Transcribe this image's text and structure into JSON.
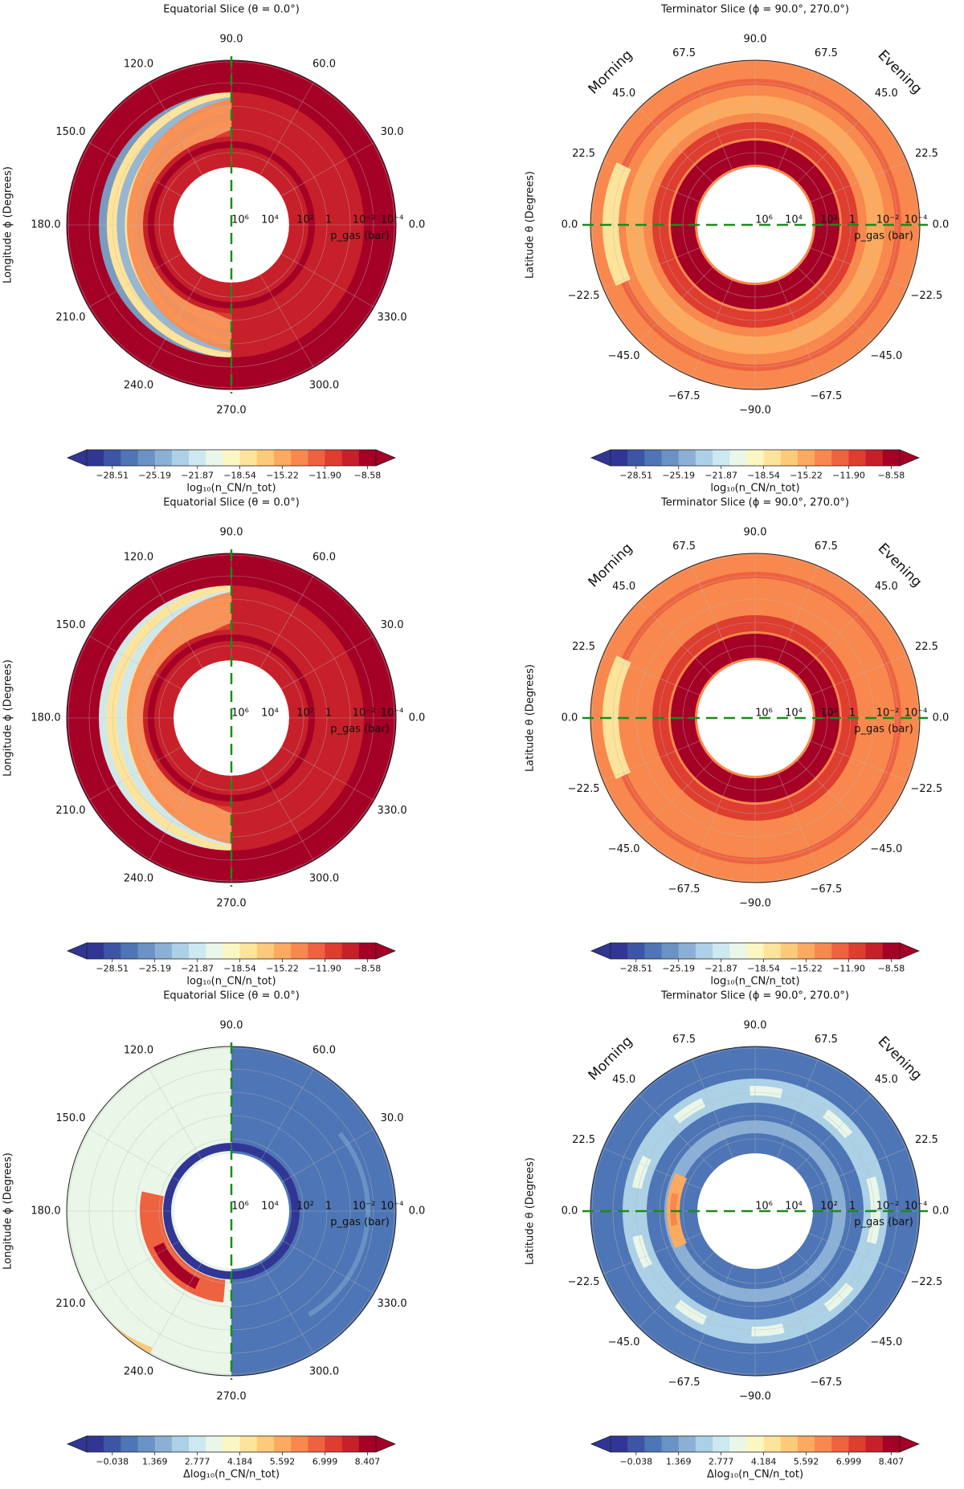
{
  "chart_data": [
    {
      "type": "polar-contour",
      "title": "Equatorial Slice (θ = 0.0°)",
      "angle_label": "Longitude ϕ (Degrees)",
      "angle_ticks": [
        "0.0",
        "30.0",
        "60.0",
        "90.0",
        "120.0",
        "150.0",
        "180.0",
        "210.0",
        "240.0",
        "270.0",
        "300.0",
        "330.0"
      ],
      "radial_ticks": [
        "10⁶",
        "10⁴",
        "10²",
        "1",
        "10⁻²",
        "10⁻⁴"
      ],
      "radial_label": "p_gas (bar)",
      "colorbar": {
        "colors": [
          "#313695",
          "#3d55a5",
          "#4e75b5",
          "#6b92c4",
          "#8cb0d5",
          "#acd0e5",
          "#cce8f1",
          "#e9f6e8",
          "#fbf7c3",
          "#fee39a",
          "#fdca79",
          "#fcaa5f",
          "#f8884d",
          "#ee6240",
          "#de3d2f",
          "#c7202a",
          "#a50026"
        ],
        "tick_labels": [
          "−28.51",
          "−25.19",
          "−21.87",
          "−18.54",
          "−15.22",
          "−11.90",
          "−8.58"
        ],
        "label": "log₁₀(n_CN/n_tot)"
      },
      "dayside_value_range": [
        -12.6,
        -9.2
      ],
      "nightside_value_range": [
        -29,
        -17
      ]
    },
    {
      "type": "polar-contour",
      "title": "Terminator Slice (ϕ = 90.0°, 270.0°)",
      "angle_label": "Latitude θ (Degrees)",
      "angle_ticks": [
        "0.0",
        "22.5",
        "45.0",
        "67.5",
        "90.0",
        "67.5",
        "45.0",
        "22.5",
        "0.0",
        "−22.5",
        "−45.0",
        "−67.5",
        "−90.0",
        "−67.5",
        "−45.0",
        "−22.5"
      ],
      "radial_ticks": [
        "10⁶",
        "10⁴",
        "10²",
        "1",
        "10⁻²",
        "10⁻⁴"
      ],
      "radial_label": "p_gas (bar)",
      "side_labels": [
        "Morning",
        "Evening"
      ],
      "colorbar": {
        "colors": [
          "#313695",
          "#3d55a5",
          "#4e75b5",
          "#6b92c4",
          "#8cb0d5",
          "#acd0e5",
          "#cce8f1",
          "#e9f6e8",
          "#fbf7c3",
          "#fee39a",
          "#fdca79",
          "#fcaa5f",
          "#f8884d",
          "#ee6240",
          "#de3d2f",
          "#c7202a",
          "#a50026"
        ],
        "tick_labels": [
          "−28.51",
          "−25.19",
          "−21.87",
          "−18.54",
          "−15.22",
          "−11.90",
          "−8.58"
        ],
        "label": "log₁₀(n_CN/n_tot)"
      }
    },
    {
      "type": "polar-contour",
      "title": "Equatorial Slice (θ = 0.0°)",
      "angle_label": "Longitude ϕ (Degrees)",
      "angle_ticks": [
        "0.0",
        "30.0",
        "60.0",
        "90.0",
        "120.0",
        "150.0",
        "180.0",
        "210.0",
        "240.0",
        "270.0",
        "300.0",
        "330.0"
      ],
      "radial_ticks": [
        "10⁶",
        "10⁴",
        "10²",
        "1",
        "10⁻²",
        "10⁻⁴"
      ],
      "radial_label": "p_gas (bar)",
      "colorbar": {
        "colors": [
          "#313695",
          "#3d55a5",
          "#4e75b5",
          "#6b92c4",
          "#8cb0d5",
          "#acd0e5",
          "#cce8f1",
          "#e9f6e8",
          "#fbf7c3",
          "#fee39a",
          "#fdca79",
          "#fcaa5f",
          "#f8884d",
          "#ee6240",
          "#de3d2f",
          "#c7202a",
          "#a50026"
        ],
        "tick_labels": [
          "−28.51",
          "−25.19",
          "−21.87",
          "−18.54",
          "−15.22",
          "−11.90",
          "−8.58"
        ],
        "label": "log₁₀(n_CN/n_tot)"
      }
    },
    {
      "type": "polar-contour",
      "title": "Terminator Slice (ϕ = 90.0°, 270.0°)",
      "angle_label": "Latitude θ (Degrees)",
      "angle_ticks": [
        "0.0",
        "22.5",
        "45.0",
        "67.5",
        "90.0",
        "67.5",
        "45.0",
        "22.5",
        "0.0",
        "−22.5",
        "−45.0",
        "−67.5",
        "−90.0",
        "−67.5",
        "−45.0",
        "−22.5"
      ],
      "radial_ticks": [
        "10⁶",
        "10⁴",
        "10²",
        "1",
        "10⁻²",
        "10⁻⁴"
      ],
      "radial_label": "p_gas (bar)",
      "side_labels": [
        "Morning",
        "Evening"
      ],
      "colorbar": {
        "colors": [
          "#313695",
          "#3d55a5",
          "#4e75b5",
          "#6b92c4",
          "#8cb0d5",
          "#acd0e5",
          "#cce8f1",
          "#e9f6e8",
          "#fbf7c3",
          "#fee39a",
          "#fdca79",
          "#fcaa5f",
          "#f8884d",
          "#ee6240",
          "#de3d2f",
          "#c7202a",
          "#a50026"
        ],
        "tick_labels": [
          "−28.51",
          "−25.19",
          "−21.87",
          "−18.54",
          "−15.22",
          "−11.90",
          "−8.58"
        ],
        "label": "log₁₀(n_CN/n_tot)"
      }
    },
    {
      "type": "polar-contour",
      "title": "Equatorial Slice (θ = 0.0°)",
      "angle_label": "Longitude ϕ (Degrees)",
      "angle_ticks": [
        "0.0",
        "30.0",
        "60.0",
        "90.0",
        "120.0",
        "150.0",
        "180.0",
        "210.0",
        "240.0",
        "270.0",
        "300.0",
        "330.0"
      ],
      "radial_ticks": [
        "10⁶",
        "10⁴",
        "10²",
        "1",
        "10⁻²",
        "10⁻⁴"
      ],
      "radial_label": "p_gas (bar)",
      "colorbar": {
        "colors": [
          "#313695",
          "#3d55a5",
          "#4e75b5",
          "#6b92c4",
          "#8cb0d5",
          "#acd0e5",
          "#cce8f1",
          "#e9f6e8",
          "#fbf7c3",
          "#fee39a",
          "#fdca79",
          "#fcaa5f",
          "#f8884d",
          "#ee6240",
          "#de3d2f",
          "#c7202a",
          "#a50026"
        ],
        "tick_labels": [
          "−0.038",
          "1.369",
          "2.777",
          "4.184",
          "5.592",
          "6.999",
          "8.407"
        ],
        "label": "Δlog₁₀(n_CN/n_tot)"
      }
    },
    {
      "type": "polar-contour",
      "title": "Terminator Slice (ϕ = 90.0°, 270.0°)",
      "angle_label": "Latitude θ (Degrees)",
      "angle_ticks": [
        "0.0",
        "22.5",
        "45.0",
        "67.5",
        "90.0",
        "67.5",
        "45.0",
        "22.5",
        "0.0",
        "−22.5",
        "−45.0",
        "−67.5",
        "−90.0",
        "−67.5",
        "−45.0",
        "−22.5"
      ],
      "radial_ticks": [
        "10⁶",
        "10⁴",
        "10²",
        "1",
        "10⁻²",
        "10⁻⁴"
      ],
      "radial_label": "p_gas (bar)",
      "side_labels": [
        "Morning",
        "Evening"
      ],
      "colorbar": {
        "colors": [
          "#313695",
          "#3d55a5",
          "#4e75b5",
          "#6b92c4",
          "#8cb0d5",
          "#acd0e5",
          "#cce8f1",
          "#e9f6e8",
          "#fbf7c3",
          "#fee39a",
          "#fdca79",
          "#fcaa5f",
          "#f8884d",
          "#ee6240",
          "#de3d2f",
          "#c7202a",
          "#a50026"
        ],
        "tick_labels": [
          "−0.038",
          "1.369",
          "2.777",
          "4.184",
          "5.592",
          "6.999",
          "8.407"
        ],
        "label": "Δlog₁₀(n_CN/n_tot)"
      }
    }
  ]
}
